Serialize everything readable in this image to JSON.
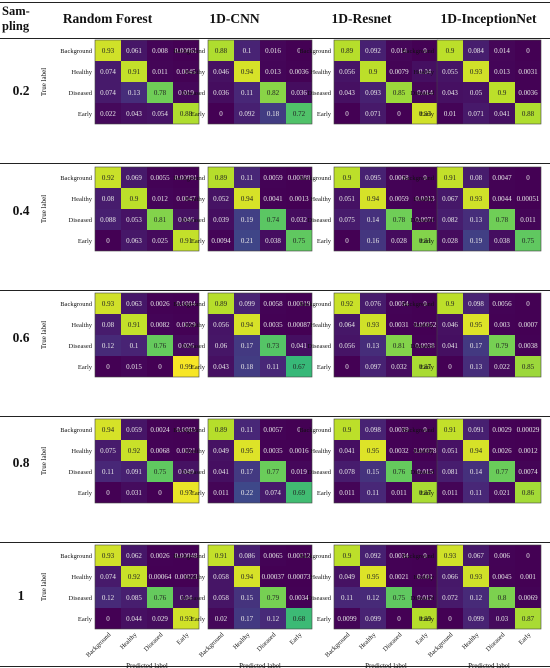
{
  "figure": {
    "header": {
      "sampling_label": "Sam-pling"
    },
    "colormap": [
      "#440154",
      "#482777",
      "#3e4989",
      "#31688e",
      "#26828e",
      "#1f9e89",
      "#35b779",
      "#6ece58",
      "#b5de2b",
      "#fde725"
    ],
    "row_labels": [
      "0.2",
      "0.4",
      "0.6",
      "0.8",
      "1"
    ]
  },
  "chart_data": [
    {
      "type": "heatmap",
      "title": "Random Forest",
      "sampling": "0.2",
      "xlabel": "",
      "ylabel": "True label",
      "categories": [
        "Background",
        "Healthy",
        "Diseased",
        "Early"
      ],
      "values": [
        [
          0.93,
          0.061,
          0.008,
          0.00061
        ],
        [
          0.074,
          0.91,
          0.011,
          0.0045
        ],
        [
          0.074,
          0.13,
          0.78,
          0.019
        ],
        [
          0.022,
          0.043,
          0.054,
          0.88
        ]
      ]
    },
    {
      "type": "heatmap",
      "title": "1D-CNN",
      "sampling": "0.2",
      "xlabel": "",
      "ylabel": "",
      "categories": [
        "Background",
        "Healthy",
        "Diseased",
        "Early"
      ],
      "values": [
        [
          0.88,
          0.1,
          0.016,
          0
        ],
        [
          0.046,
          0.94,
          0.013,
          0.0036
        ],
        [
          0.036,
          0.11,
          0.82,
          0.036
        ],
        [
          0,
          0.092,
          0.18,
          0.72
        ]
      ]
    },
    {
      "type": "heatmap",
      "title": "1D-Resnet",
      "sampling": "0.2",
      "xlabel": "",
      "ylabel": "",
      "categories": [
        "Background",
        "Healthy",
        "Diseased",
        "Early"
      ],
      "values": [
        [
          0.89,
          0.092,
          0.014,
          0
        ],
        [
          0.056,
          0.9,
          0.0079,
          0.04
        ],
        [
          0.043,
          0.093,
          0.85,
          0.014
        ],
        [
          0,
          0.071,
          0,
          0.93
        ]
      ]
    },
    {
      "type": "heatmap",
      "title": "1D-InceptionNet",
      "sampling": "0.2",
      "xlabel": "",
      "ylabel": "",
      "categories": [
        "Background",
        "Healthy",
        "Diseased",
        "Early"
      ],
      "values": [
        [
          0.9,
          0.084,
          0.014,
          0
        ],
        [
          0.055,
          0.93,
          0.013,
          0.0031
        ],
        [
          0.043,
          0.05,
          0.9,
          0.0036
        ],
        [
          0.01,
          0.071,
          0.041,
          0.88
        ]
      ]
    },
    {
      "type": "heatmap",
      "title": "Random Forest",
      "sampling": "0.4",
      "xlabel": "",
      "ylabel": "True label",
      "categories": [
        "Background",
        "Healthy",
        "Diseased",
        "Early"
      ],
      "values": [
        [
          0.92,
          0.069,
          0.0055,
          0.00091
        ],
        [
          0.08,
          0.9,
          0.012,
          0.0047
        ],
        [
          0.088,
          0.053,
          0.81,
          0.046
        ],
        [
          0,
          0.063,
          0.025,
          0.91
        ]
      ]
    },
    {
      "type": "heatmap",
      "title": "1D-CNN",
      "sampling": "0.4",
      "xlabel": "",
      "ylabel": "",
      "categories": [
        "Background",
        "Healthy",
        "Diseased",
        "Early"
      ],
      "values": [
        [
          0.89,
          0.11,
          0.0059,
          0.00088
        ],
        [
          0.052,
          0.94,
          0.0041,
          0.0013
        ],
        [
          0.039,
          0.19,
          0.74,
          0.032
        ],
        [
          0.0094,
          0.21,
          0.038,
          0.75
        ]
      ]
    },
    {
      "type": "heatmap",
      "title": "1D-Resnet",
      "sampling": "0.4",
      "xlabel": "",
      "ylabel": "",
      "categories": [
        "Background",
        "Healthy",
        "Diseased",
        "Early"
      ],
      "values": [
        [
          0.9,
          0.095,
          0.0068,
          0
        ],
        [
          0.051,
          0.94,
          0.0059,
          0.0013
        ],
        [
          0.075,
          0.14,
          0.78,
          0.0071
        ],
        [
          0,
          0.16,
          0.028,
          0.81
        ]
      ]
    },
    {
      "type": "heatmap",
      "title": "1D-InceptionNet",
      "sampling": "0.4",
      "xlabel": "",
      "ylabel": "",
      "categories": [
        "Background",
        "Healthy",
        "Diseased",
        "Early"
      ],
      "values": [
        [
          0.91,
          0.08,
          0.0047,
          0
        ],
        [
          0.067,
          0.93,
          0.0044,
          0.00051
        ],
        [
          0.082,
          0.13,
          0.78,
          0.011
        ],
        [
          0.028,
          0.19,
          0.038,
          0.75
        ]
      ]
    },
    {
      "type": "heatmap",
      "title": "Random Forest",
      "sampling": "0.6",
      "xlabel": "",
      "ylabel": "True label",
      "categories": [
        "Background",
        "Healthy",
        "Diseased",
        "Early"
      ],
      "values": [
        [
          0.93,
          0.063,
          0.0026,
          0.0004
        ],
        [
          0.08,
          0.91,
          0.0082,
          0.0029
        ],
        [
          0.12,
          0.1,
          0.76,
          0.026
        ],
        [
          0,
          0.015,
          0,
          0.99
        ]
      ]
    },
    {
      "type": "heatmap",
      "title": "1D-CNN",
      "sampling": "0.6",
      "xlabel": "",
      "ylabel": "",
      "categories": [
        "Background",
        "Healthy",
        "Diseased",
        "Early"
      ],
      "values": [
        [
          0.89,
          0.099,
          0.0058,
          0.00019
        ],
        [
          0.056,
          0.94,
          0.0035,
          0.00087
        ],
        [
          0.06,
          0.17,
          0.73,
          0.041
        ],
        [
          0.043,
          0.18,
          0.11,
          0.67
        ]
      ]
    },
    {
      "type": "heatmap",
      "title": "1D-Resnet",
      "sampling": "0.6",
      "xlabel": "",
      "ylabel": "",
      "categories": [
        "Background",
        "Healthy",
        "Diseased",
        "Early"
      ],
      "values": [
        [
          0.92,
          0.076,
          0.0054,
          0
        ],
        [
          0.064,
          0.93,
          0.0031,
          0.00052
        ],
        [
          0.056,
          0.13,
          0.81,
          0.0038
        ],
        [
          0,
          0.097,
          0.032,
          0.87
        ]
      ]
    },
    {
      "type": "heatmap",
      "title": "1D-InceptionNet",
      "sampling": "0.6",
      "xlabel": "",
      "ylabel": "",
      "categories": [
        "Background",
        "Healthy",
        "Diseased",
        "Early"
      ],
      "values": [
        [
          0.9,
          0.098,
          0.0056,
          0
        ],
        [
          0.046,
          0.95,
          0.003,
          0.0007
        ],
        [
          0.041,
          0.17,
          0.79,
          0.0038
        ],
        [
          0,
          0.13,
          0.022,
          0.85
        ]
      ]
    },
    {
      "type": "heatmap",
      "title": "Random Forest",
      "sampling": "0.8",
      "xlabel": "",
      "ylabel": "True label",
      "categories": [
        "Background",
        "Healthy",
        "Diseased",
        "Early"
      ],
      "values": [
        [
          0.94,
          0.059,
          0.0024,
          0.0003
        ],
        [
          0.075,
          0.92,
          0.0068,
          0.0021
        ],
        [
          0.11,
          0.091,
          0.75,
          0.049
        ],
        [
          0,
          0.031,
          0,
          0.97
        ]
      ]
    },
    {
      "type": "heatmap",
      "title": "1D-CNN",
      "sampling": "0.8",
      "xlabel": "",
      "ylabel": "",
      "categories": [
        "Background",
        "Healthy",
        "Diseased",
        "Early"
      ],
      "values": [
        [
          0.89,
          0.11,
          0.0057,
          0
        ],
        [
          0.049,
          0.95,
          0.0035,
          0.0016
        ],
        [
          0.041,
          0.17,
          0.77,
          0.019
        ],
        [
          0.011,
          0.22,
          0.074,
          0.69
        ]
      ]
    },
    {
      "type": "heatmap",
      "title": "1D-Resnet",
      "sampling": "0.8",
      "xlabel": "",
      "ylabel": "",
      "categories": [
        "Background",
        "Healthy",
        "Diseased",
        "Early"
      ],
      "values": [
        [
          0.9,
          0.098,
          0.0039,
          0
        ],
        [
          0.041,
          0.95,
          0.0032,
          0.00078
        ],
        [
          0.078,
          0.15,
          0.76,
          0.015
        ],
        [
          0.011,
          0.11,
          0.011,
          0.87
        ]
      ]
    },
    {
      "type": "heatmap",
      "title": "1D-InceptionNet",
      "sampling": "0.8",
      "xlabel": "",
      "ylabel": "",
      "categories": [
        "Background",
        "Healthy",
        "Diseased",
        "Early"
      ],
      "values": [
        [
          0.91,
          0.091,
          0.0029,
          0.00029
        ],
        [
          0.051,
          0.94,
          0.0026,
          0.0012
        ],
        [
          0.081,
          0.14,
          0.77,
          0.0074
        ],
        [
          0.011,
          0.11,
          0.021,
          0.86
        ]
      ]
    },
    {
      "type": "heatmap",
      "title": "Random Forest",
      "sampling": "1",
      "xlabel": "Predicted label",
      "ylabel": "True label",
      "categories": [
        "Background",
        "Healthy",
        "Diseased",
        "Early"
      ],
      "values": [
        [
          0.93,
          0.062,
          0.0026,
          0.00048
        ],
        [
          0.074,
          0.92,
          0.00064,
          0.00023
        ],
        [
          0.12,
          0.085,
          0.76,
          0.04
        ],
        [
          0,
          0.044,
          0.029,
          0.93
        ]
      ]
    },
    {
      "type": "heatmap",
      "title": "1D-CNN",
      "sampling": "1",
      "xlabel": "Predicted label",
      "ylabel": "",
      "categories": [
        "Background",
        "Healthy",
        "Diseased",
        "Early"
      ],
      "values": [
        [
          0.91,
          0.086,
          0.0065,
          0.00012
        ],
        [
          0.058,
          0.94,
          0.00037,
          0.00073
        ],
        [
          0.058,
          0.15,
          0.79,
          0.0034
        ],
        [
          0.02,
          0.17,
          0.12,
          0.68
        ]
      ]
    },
    {
      "type": "heatmap",
      "title": "1D-Resnet",
      "sampling": "1",
      "xlabel": "Predicted label",
      "ylabel": "",
      "categories": [
        "Background",
        "Healthy",
        "Diseased",
        "Early"
      ],
      "values": [
        [
          0.9,
          0.092,
          0.0034,
          0
        ],
        [
          0.049,
          0.95,
          0.0021,
          0.001
        ],
        [
          0.11,
          0.12,
          0.75,
          0.012
        ],
        [
          0.0099,
          0.099,
          0,
          0.89
        ]
      ]
    },
    {
      "type": "heatmap",
      "title": "1D-InceptionNet",
      "sampling": "1",
      "xlabel": "Predicted label",
      "ylabel": "",
      "categories": [
        "Background",
        "Healthy",
        "Diseased",
        "Early"
      ],
      "values": [
        [
          0.93,
          0.067,
          0.006,
          0
        ],
        [
          0.066,
          0.93,
          0.0045,
          0.001
        ],
        [
          0.072,
          0.12,
          0.8,
          0.0069
        ],
        [
          0,
          0.099,
          0.03,
          0.87
        ]
      ]
    }
  ]
}
